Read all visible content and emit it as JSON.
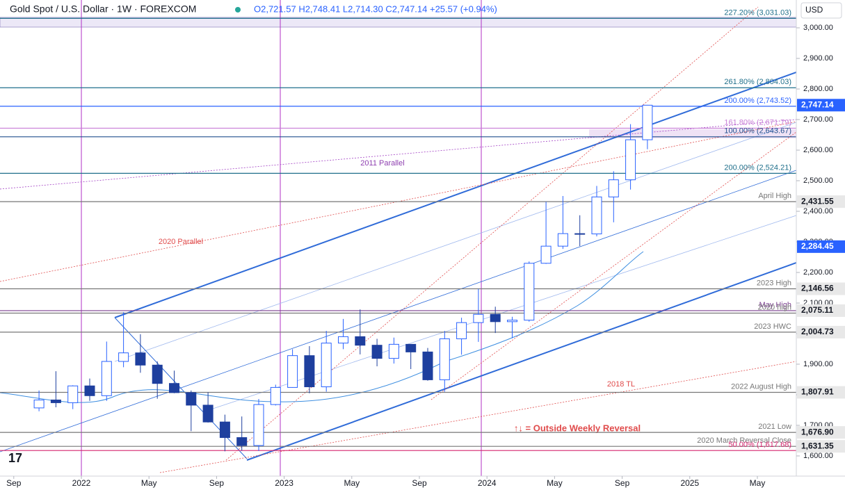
{
  "chart_data": {
    "type": "candlestick",
    "title": "Gold Spot / U.S. Dollar · 1W · FOREXCOM",
    "subtitle": "O2,721.57  H2,748.41  L2,714.30  C2,747.14  +25.57 (+0.94%)",
    "currency": "USD",
    "up_color": "#2962ff",
    "down_color": "#1e3f9e",
    "xlim": [
      "2021-08",
      "2025-07"
    ],
    "ylim": [
      1534,
      3091
    ],
    "grid": false,
    "xticks": [
      {
        "value": "2021-09",
        "label": "Sep"
      },
      {
        "value": "2022-01",
        "label": "2022"
      },
      {
        "value": "2022-05",
        "label": "May"
      },
      {
        "value": "2022-09",
        "label": "Sep"
      },
      {
        "value": "2023-01",
        "label": "2023"
      },
      {
        "value": "2023-05",
        "label": "May"
      },
      {
        "value": "2023-09",
        "label": "Sep"
      },
      {
        "value": "2024-01",
        "label": "2024"
      },
      {
        "value": "2024-05",
        "label": "May"
      },
      {
        "value": "2024-09",
        "label": "Sep"
      },
      {
        "value": "2025-01",
        "label": "2025"
      },
      {
        "value": "2025-05",
        "label": "May"
      }
    ],
    "yticks": [
      {
        "value": 1600,
        "label": "1,600.00"
      },
      {
        "value": 1700,
        "label": "1,700.00"
      },
      {
        "value": 1800,
        "label": "1,800.00"
      },
      {
        "value": 1900,
        "label": "1,900.00"
      },
      {
        "value": 2000,
        "label": "2,000.00"
      },
      {
        "value": 2100,
        "label": "2,100.00"
      },
      {
        "value": 2200,
        "label": "2,200.00"
      },
      {
        "value": 2300,
        "label": "2,300.00"
      },
      {
        "value": 2400,
        "label": "2,400.00"
      },
      {
        "value": 2500,
        "label": "2,500.00"
      },
      {
        "value": 2600,
        "label": "2,600.00"
      },
      {
        "value": 2700,
        "label": "2,700.00"
      },
      {
        "value": 2800,
        "label": "2,800.00"
      },
      {
        "value": 2900,
        "label": "2,900.00"
      },
      {
        "value": 3000,
        "label": "3,000.00"
      }
    ],
    "x": [
      "2021-10",
      "2021-11",
      "2021-12",
      "2022-01",
      "2022-02",
      "2022-03",
      "2022-04",
      "2022-05",
      "2022-06",
      "2022-07",
      "2022-08",
      "2022-09",
      "2022-10",
      "2022-11",
      "2022-12",
      "2023-01",
      "2023-02",
      "2023-03",
      "2023-04",
      "2023-05",
      "2023-06",
      "2023-07",
      "2023-08",
      "2023-09",
      "2023-10",
      "2023-11",
      "2023-12",
      "2024-01",
      "2024-02",
      "2024-03",
      "2024-04",
      "2024-05",
      "2024-06",
      "2024-07",
      "2024-08",
      "2024-09",
      "2024-10"
    ],
    "open": [
      1757,
      1783,
      1774,
      1829,
      1797,
      1909,
      1937,
      1897,
      1837,
      1807,
      1766,
      1711,
      1660,
      1634,
      1768,
      1824,
      1928,
      1826,
      1969,
      1990,
      1962,
      1919,
      1965,
      1940,
      1849,
      1983,
      2036,
      2063,
      2039,
      2044,
      2230,
      2286,
      2327,
      2326,
      2447,
      2503,
      2634
    ],
    "high": [
      1814,
      1877,
      1831,
      1853,
      1974,
      2070,
      1998,
      1909,
      1879,
      1814,
      1808,
      1735,
      1729,
      1786,
      1833,
      1949,
      1959,
      2009,
      2048,
      2079,
      1983,
      1987,
      1966,
      1953,
      2009,
      2052,
      2146,
      2088,
      2055,
      2236,
      2431,
      2450,
      2387,
      2483,
      2531,
      2685,
      2748
    ],
    "low": [
      1746,
      1759,
      1753,
      1780,
      1780,
      1890,
      1872,
      1787,
      1805,
      1681,
      1709,
      1615,
      1617,
      1616,
      1765,
      1823,
      1805,
      1810,
      1949,
      1932,
      1893,
      1902,
      1884,
      1846,
      1810,
      1931,
      1973,
      2002,
      1985,
      2039,
      2228,
      2277,
      2286,
      2318,
      2364,
      2471,
      2603
    ],
    "close": [
      1783,
      1774,
      1829,
      1797,
      1909,
      1937,
      1897,
      1837,
      1807,
      1766,
      1711,
      1660,
      1634,
      1768,
      1824,
      1928,
      1826,
      1969,
      1990,
      1962,
      1919,
      1965,
      1940,
      1849,
      1983,
      2036,
      2063,
      2039,
      2044,
      2230,
      2286,
      2327,
      2326,
      2447,
      2503,
      2634,
      2747
    ],
    "levels": [
      {
        "value": 3031.03,
        "label": "227.20% (3,031.03)",
        "color": "#1f6f8b"
      },
      {
        "value": 2804.03,
        "label": "261.80% (2,804.03)",
        "color": "#1f6f8b"
      },
      {
        "value": 2743.52,
        "label": "200.00% (2,743.52)",
        "color": "#2962ff"
      },
      {
        "value": 2671.79,
        "label": "161.80% (2,671.79)",
        "color": "#c77dd6"
      },
      {
        "value": 2643.67,
        "label": "100.00% (2,643.67)",
        "color": "#1f4e8c"
      },
      {
        "value": 2524.21,
        "label": "200.00% (2,524.21)",
        "color": "#1f6f8b"
      },
      {
        "value": 2431.55,
        "label": "April High",
        "color": "#777777"
      },
      {
        "value": 2146.56,
        "label": "2023 High",
        "color": "#777777"
      },
      {
        "value": 2075.11,
        "label": "May High",
        "color": "#7b3f8f"
      },
      {
        "value": 2067,
        "label": "2020 high",
        "color": "#777777"
      },
      {
        "value": 2004.73,
        "label": "2023 HWC",
        "color": "#777777"
      },
      {
        "value": 1807.91,
        "label": "2022 August High",
        "color": "#777777"
      },
      {
        "value": 1676.9,
        "label": "2021 Low",
        "color": "#777777"
      },
      {
        "value": 1631.35,
        "label": "2020 March Reversal Close",
        "color": "#777777"
      },
      {
        "value": 1617.68,
        "label": "50.00% (1,617.68)",
        "color": "#d6246e"
      }
    ],
    "price_tags": [
      {
        "value": 2747.14,
        "label": "2,747.14",
        "color": "#2962ff"
      },
      {
        "value": 2431.55,
        "label": "2,431.55",
        "color": "#e8e8e8"
      },
      {
        "value": 2284.45,
        "label": "2,284.45",
        "color": "#2962ff"
      },
      {
        "value": 2146.56,
        "label": "2,146.56",
        "color": "#e8e8e8"
      },
      {
        "value": 2075.11,
        "label": "2,075.11",
        "color": "#e8e8e8"
      },
      {
        "value": 2004.73,
        "label": "2,004.73",
        "color": "#e8e8e8"
      },
      {
        "value": 1807.91,
        "label": "1,807.91",
        "color": "#e8e8e8"
      },
      {
        "value": 1676.9,
        "label": "1,676.90",
        "color": "#e8e8e8"
      },
      {
        "value": 1631.35,
        "label": "1,631.35",
        "color": "#e8e8e8"
      }
    ],
    "annotations": [
      "2011 Parallel",
      "2020 Parallel",
      "2018 TL",
      "↑↓ = Outside Weekly Reversal"
    ]
  }
}
